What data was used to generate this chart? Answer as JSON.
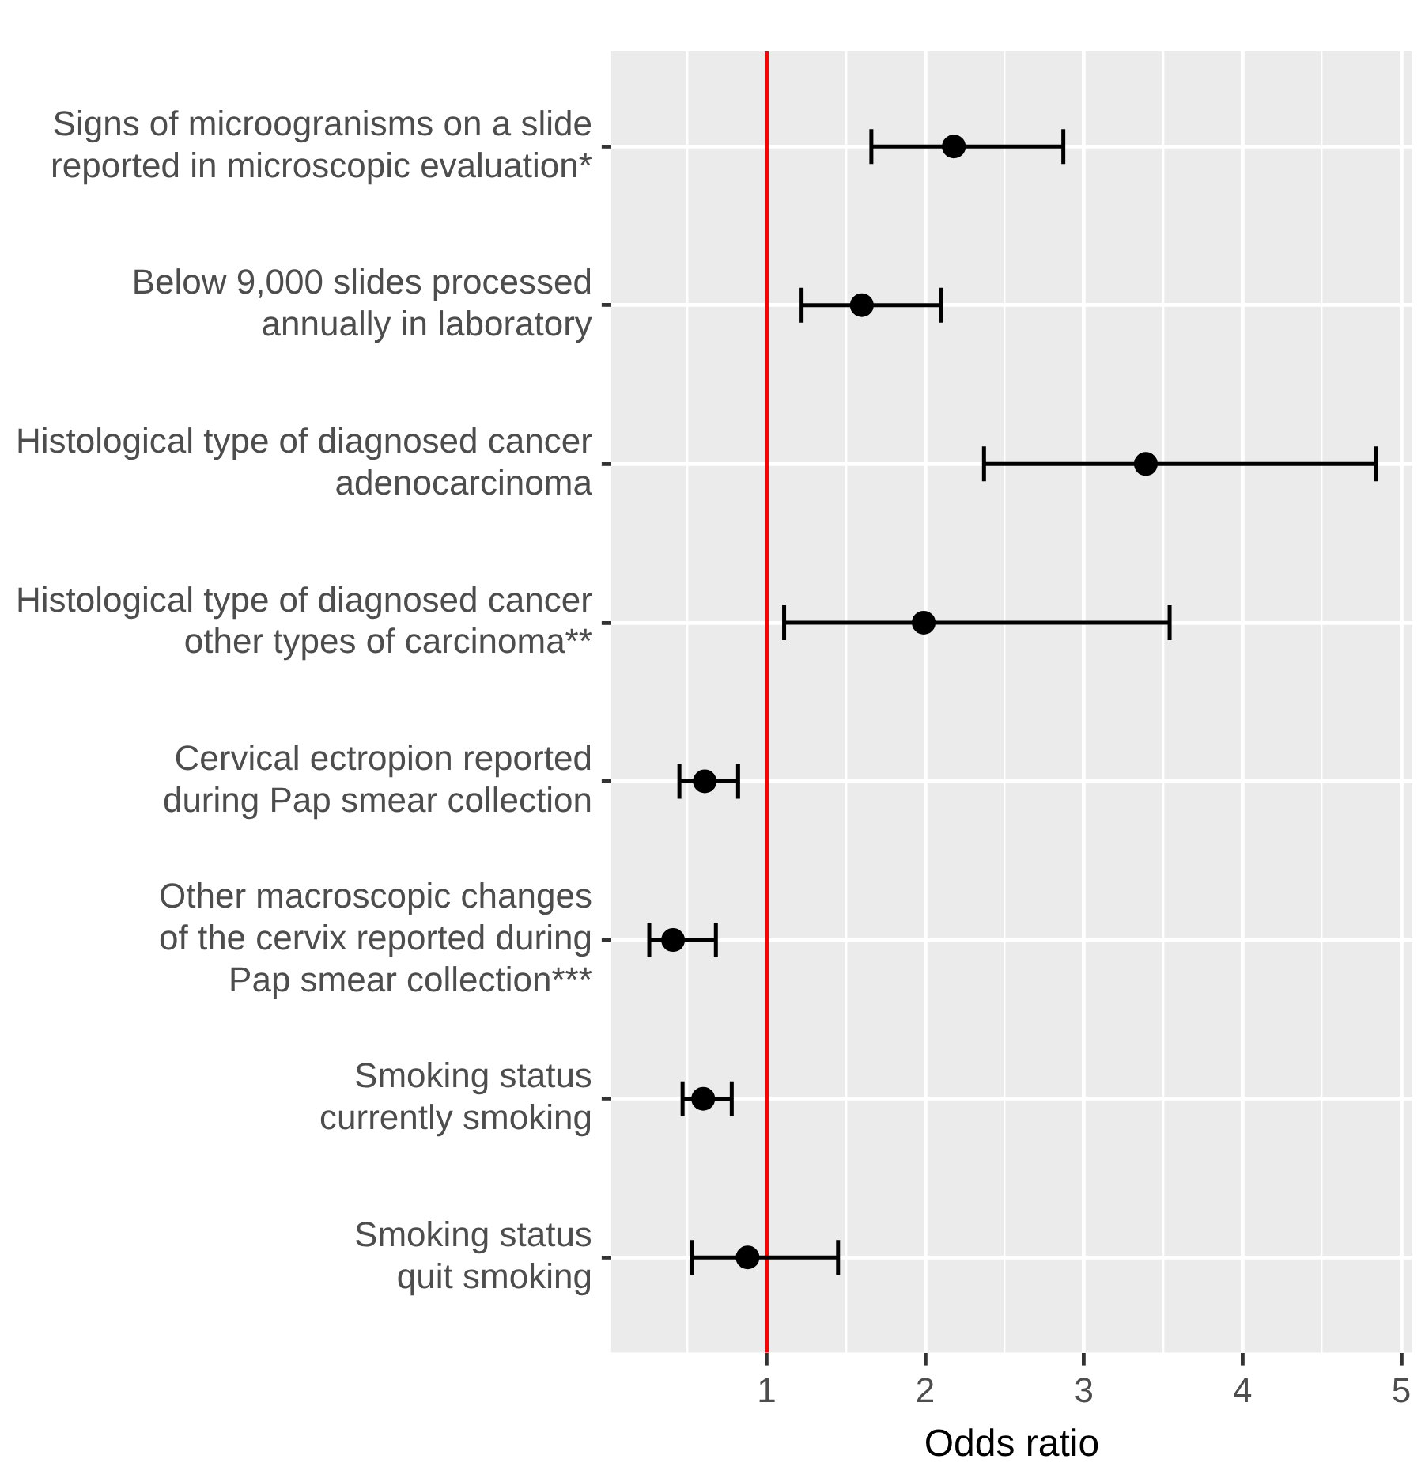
{
  "chart_data": {
    "type": "scatter",
    "xlabel": "Odds ratio",
    "categories": [
      "Signs of microogranisms on a slide\nreported in microscopic evaluation*",
      "Below 9,000 slides processed\nannually in laboratory",
      "Histological type of diagnosed cancer\nadenocarcinoma",
      "Histological type of diagnosed cancer\nother types of carcinoma**",
      "Cervical ectropion reported\nduring Pap smear collection",
      "Other macroscopic changes\nof the cervix reported during\nPap smear collection***",
      "Smoking status\ncurrently smoking",
      "Smoking status\nquit smoking"
    ],
    "series": [
      {
        "color": "#000000",
        "values": [
          2.18,
          1.6,
          3.39,
          1.99,
          0.61,
          0.41,
          0.6,
          0.88
        ],
        "errors": [
          [
            1.66,
            2.87
          ],
          [
            1.22,
            2.1
          ],
          [
            2.37,
            4.84
          ],
          [
            1.11,
            3.54
          ],
          [
            0.45,
            0.82
          ],
          [
            0.26,
            0.68
          ],
          [
            0.47,
            0.78
          ],
          [
            0.53,
            1.45
          ]
        ]
      }
    ],
    "xlim": [
      0.02,
      5.07
    ],
    "xticks": [
      {
        "value": 0.5,
        "label": null
      },
      1,
      {
        "value": 1.5,
        "label": null
      },
      2,
      {
        "value": 2.5,
        "label": null
      },
      3,
      {
        "value": 3.5,
        "label": null
      },
      4,
      {
        "value": 4.5,
        "label": null
      },
      5
    ],
    "ref_lines": [
      {
        "axis": "x",
        "value": 1,
        "color": "#ff0000"
      }
    ],
    "grid": true,
    "legend": false,
    "marker": "circle",
    "orientation": "horizontal"
  }
}
